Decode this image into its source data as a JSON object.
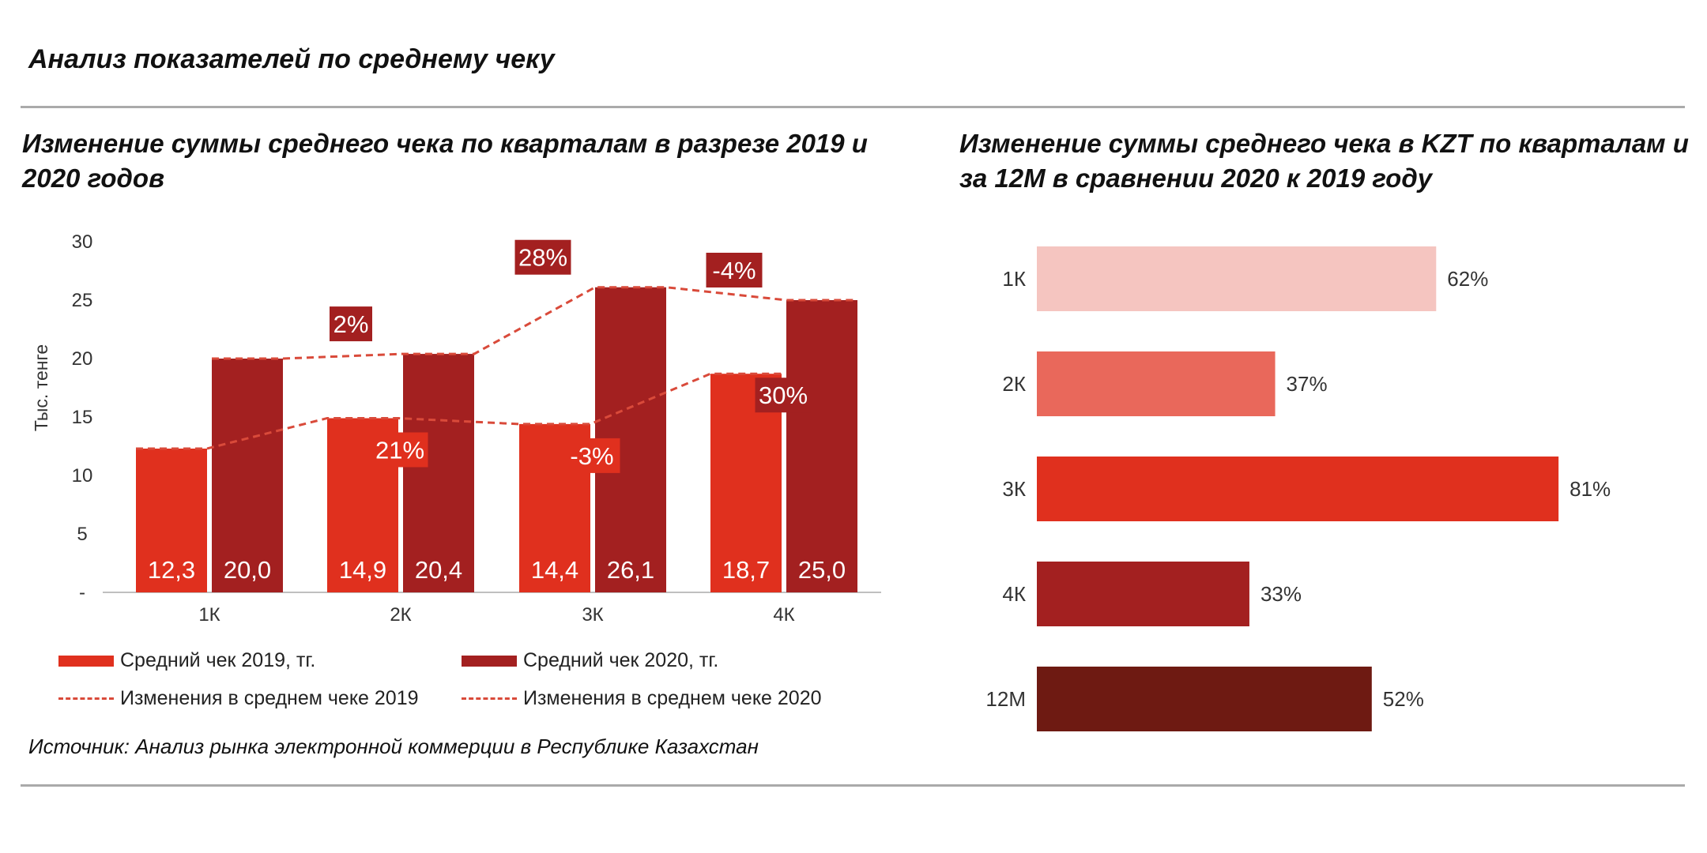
{
  "page": {
    "title": "Анализ показателей по среднему чеку",
    "source": "Источник: Анализ рынка электронной коммерции в Республике Казахстан"
  },
  "colors": {
    "bar2019": "#e0301e",
    "bar2020": "#a32020",
    "line": "#d94a3a",
    "h1K": "#f5c5c0",
    "h2K": "#e9685b",
    "h3K": "#e0301e",
    "h4K": "#a32020",
    "h12M": "#6e1a12"
  },
  "chart_data": [
    {
      "type": "bar",
      "title": "Изменение суммы среднего чека по кварталам в разрезе 2019 и 2020 годов",
      "ylabel": "Тыс. тенге",
      "ylim": [
        0,
        30
      ],
      "yticks": [
        "-",
        "5",
        "10",
        "15",
        "20",
        "25",
        "30"
      ],
      "categories": [
        "1К",
        "2К",
        "3К",
        "4К"
      ],
      "series": [
        {
          "name": "Средний чек 2019, тг.",
          "values": [
            12.3,
            14.9,
            14.4,
            18.7
          ],
          "labels": [
            "12,3",
            "14,9",
            "14,4",
            "18,7"
          ]
        },
        {
          "name": "Средний чек 2020, тг.",
          "values": [
            20.0,
            20.4,
            26.1,
            25.0
          ],
          "labels": [
            "20,0",
            "20,4",
            "26,1",
            "25,0"
          ]
        }
      ],
      "lines": [
        {
          "name": "Изменения  в среднем чеке 2019",
          "change_labels": [
            "21%",
            "-3%",
            "30%"
          ]
        },
        {
          "name": "Изменения  в среднем чеке 2020",
          "change_labels": [
            "2%",
            "28%",
            "-4%"
          ]
        }
      ]
    },
    {
      "type": "bar",
      "orientation": "horizontal",
      "title": "Изменение суммы среднего чека в KZT по кварталам и за 12М в сравнении 2020 к 2019 году",
      "categories": [
        "1К",
        "2К",
        "3К",
        "4К",
        "12М"
      ],
      "values": [
        62,
        37,
        81,
        33,
        52
      ],
      "labels": [
        "62%",
        "37%",
        "81%",
        "33%",
        "52%"
      ]
    }
  ]
}
